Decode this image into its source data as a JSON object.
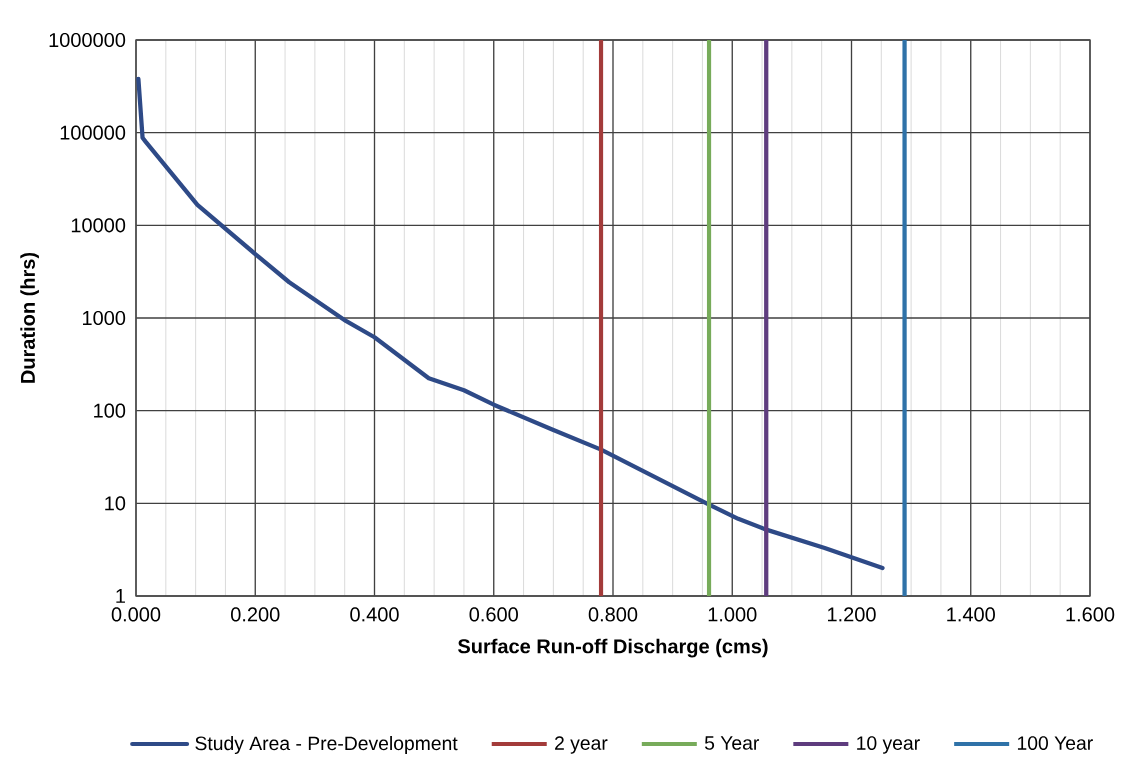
{
  "chart_data": {
    "type": "line",
    "xlabel": "Surface Run-off Discharge (cms)",
    "ylabel": "Duration (hrs)",
    "log": "y",
    "grid": true,
    "legend": "bottom",
    "marker": "none",
    "line_style": "solid",
    "xlim": [
      0,
      1.6
    ],
    "ylim": [
      1,
      1000000
    ],
    "xticks": [
      {
        "value": 0,
        "label": "0.000"
      },
      {
        "value": 0.2,
        "label": "0.200"
      },
      {
        "value": 0.4,
        "label": "0.400"
      },
      {
        "value": 0.6,
        "label": "0.600"
      },
      {
        "value": 0.8,
        "label": "0.800"
      },
      {
        "value": 1.0,
        "label": "1.000"
      },
      {
        "value": 1.2,
        "label": "1.200"
      },
      {
        "value": 1.4,
        "label": "1.400"
      },
      {
        "value": 1.6,
        "label": "1.600"
      }
    ],
    "yticks": [
      1,
      10,
      100,
      1000,
      10000,
      100000,
      1000000
    ],
    "series": [
      {
        "name": "Study Area - Pre-Development",
        "color": "#2e4a87",
        "x": [
          0.004,
          0.011,
          0.016,
          0.103,
          0.2,
          0.257,
          0.352,
          0.4,
          0.491,
          0.55,
          0.6,
          0.697,
          0.78,
          0.961,
          1.01,
          1.057,
          1.155,
          1.252
        ],
        "values": [
          380000,
          88000,
          80000,
          16600,
          4900,
          2430,
          930,
          620,
          224,
          166,
          116,
          63,
          38,
          9.7,
          6.8,
          5.2,
          3.3,
          2.0
        ]
      }
    ],
    "ref_lines": [
      {
        "axis": "x",
        "value": 0.78,
        "label": "2 year",
        "color": "#a33b3a"
      },
      {
        "axis": "x",
        "value": 0.961,
        "label": "5 Year",
        "color": "#77ab5a"
      },
      {
        "axis": "x",
        "value": 1.057,
        "label": "10 year",
        "color": "#5e3c7e"
      },
      {
        "axis": "x",
        "value": 1.289,
        "label": "100 Year",
        "color": "#2f72a8"
      }
    ]
  }
}
